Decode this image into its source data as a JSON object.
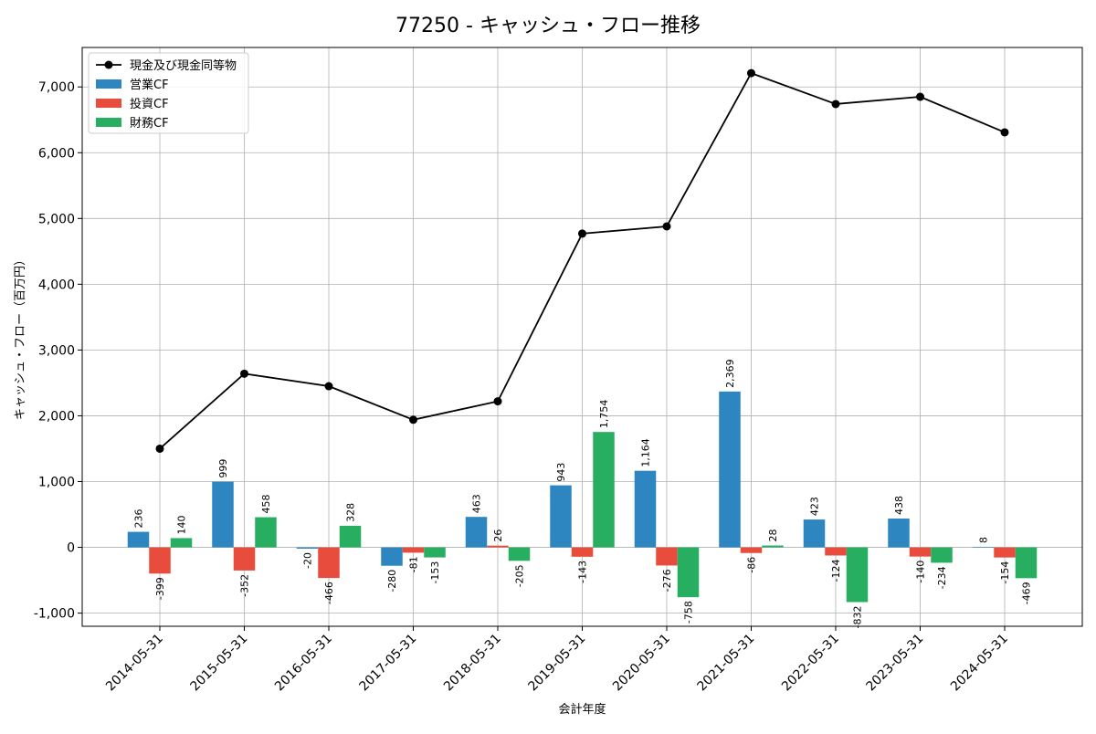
{
  "chart_data": {
    "type": "bar",
    "title": "77250 - キャッシュ・フロー推移",
    "xlabel": "会計年度",
    "ylabel": "キャッシュ・フロー（百万円）",
    "categories": [
      "2014-05-31",
      "2015-05-31",
      "2016-05-31",
      "2017-05-31",
      "2018-05-31",
      "2019-05-31",
      "2020-05-31",
      "2021-05-31",
      "2022-05-31",
      "2023-05-31",
      "2024-05-31"
    ],
    "ylim": [
      -1200,
      7600
    ],
    "yticks": [
      -1000,
      0,
      1000,
      2000,
      3000,
      4000,
      5000,
      6000,
      7000
    ],
    "ytick_labels": [
      "-1,000",
      "0",
      "1,000",
      "2,000",
      "3,000",
      "4,000",
      "5,000",
      "6,000",
      "7,000"
    ],
    "grid": true,
    "legend_position": "top-left",
    "series": [
      {
        "name": "営業CF",
        "type": "bar",
        "color": "#2e86c1",
        "values": [
          236,
          999,
          -20,
          -280,
          463,
          943,
          1164,
          2369,
          423,
          438,
          8
        ],
        "labels": [
          "236",
          "999",
          "-20",
          "-280",
          "463",
          "943",
          "1,164",
          "2,369",
          "423",
          "438",
          "8"
        ]
      },
      {
        "name": "投資CF",
        "type": "bar",
        "color": "#e74c3c",
        "values": [
          -399,
          -352,
          -466,
          -81,
          26,
          -143,
          -276,
          -86,
          -124,
          -140,
          -154
        ],
        "labels": [
          "-399",
          "-352",
          "-466",
          "-81",
          "26",
          "-143",
          "-276",
          "-86",
          "-124",
          "-140",
          "-154"
        ]
      },
      {
        "name": "財務CF",
        "type": "bar",
        "color": "#27ae60",
        "values": [
          140,
          458,
          328,
          -153,
          -205,
          1754,
          -758,
          28,
          -832,
          -234,
          -469
        ],
        "labels": [
          "140",
          "458",
          "328",
          "-153",
          "-205",
          "1,754",
          "-758",
          "28",
          "-832",
          "-234",
          "-469"
        ]
      },
      {
        "name": "現金及び現金同等物",
        "type": "line",
        "color": "#000000",
        "values": [
          1500,
          2640,
          2450,
          1940,
          2220,
          4770,
          4880,
          7210,
          6740,
          6850,
          6310
        ]
      }
    ]
  }
}
